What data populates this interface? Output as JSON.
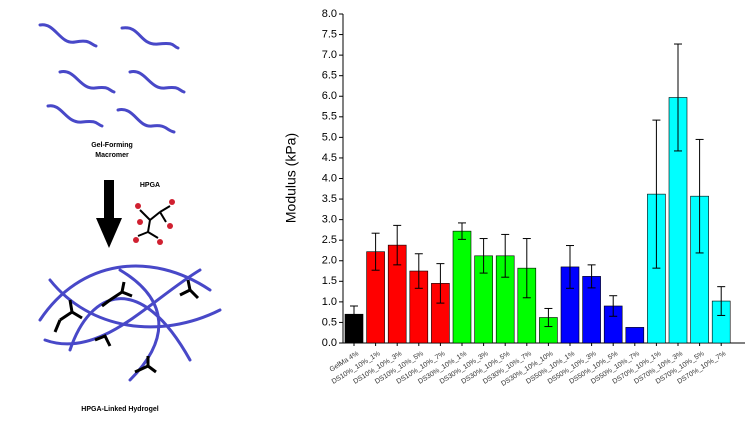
{
  "diagram": {
    "macromer_label": [
      "Gel-Forming",
      "Macromer"
    ],
    "crosslinker_label": "HPGA",
    "hydrogel_label": "HPGA-Linked Hydrogel"
  },
  "chart_data": {
    "type": "bar",
    "y_label": "Modulus (kPa)",
    "categories": [
      "GelMa 4%",
      "DS10%_10%_1%",
      "DS10%_10%_3%",
      "DS10%_10%_5%",
      "DS10%_10%_7%",
      "DS30%_10%_1%",
      "DS30%_10%_3%",
      "DS30%_10%_5%",
      "DS30%_10%_7%",
      "DS30%_10%_10%",
      "DS50%_10%_1%",
      "DS50%_10%_3%",
      "DS50%_10%_5%",
      "DS50%_10%_7%",
      "DS70%_10%_1%",
      "DS70%_10%_3%",
      "DS70%_10%_5%",
      "DS70%_10%_7%"
    ],
    "values": [
      0.7,
      2.22,
      2.38,
      1.75,
      1.45,
      2.72,
      2.12,
      2.12,
      1.82,
      0.62,
      1.85,
      1.62,
      0.9,
      0.38,
      3.62,
      5.97,
      3.57,
      1.02
    ],
    "errors": [
      0.2,
      0.45,
      0.48,
      0.42,
      0.48,
      0.2,
      0.42,
      0.52,
      0.72,
      0.22,
      0.52,
      0.28,
      0.25,
      null,
      1.8,
      1.3,
      1.38,
      0.35
    ],
    "colors": [
      "#000000",
      "#ff0000",
      "#ff0000",
      "#ff0000",
      "#ff0000",
      "#00ff00",
      "#00ff00",
      "#00ff00",
      "#00ff00",
      "#00ff00",
      "#0000ff",
      "#0000ff",
      "#0000ff",
      "#0000ff",
      "#00ffff",
      "#00ffff",
      "#00ffff",
      "#00ffff"
    ],
    "ylim": [
      0,
      8
    ],
    "yticks": [
      {
        "value": 0,
        "label": "0.0"
      },
      0.5,
      {
        "value": 1,
        "label": "1.0"
      },
      1.5,
      {
        "value": 2,
        "label": "2.0"
      },
      2.5,
      {
        "value": 3,
        "label": "3.0"
      },
      3.5,
      {
        "value": 4,
        "label": "4.0"
      },
      4.5,
      {
        "value": 5,
        "label": "5.0"
      },
      5.5,
      {
        "value": 6,
        "label": "6.0"
      },
      6.5,
      {
        "value": 7,
        "label": "7.0"
      },
      7.5,
      {
        "value": 8,
        "label": "8.0"
      }
    ]
  }
}
